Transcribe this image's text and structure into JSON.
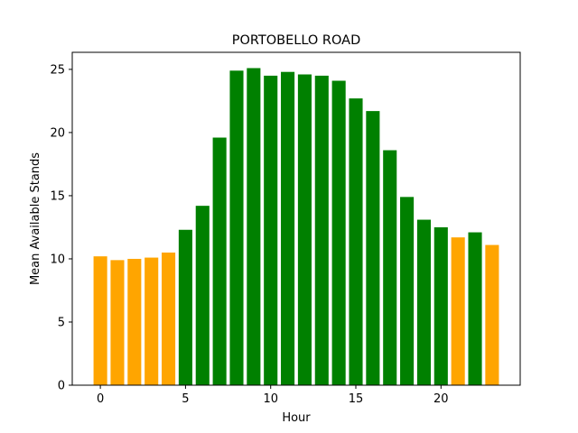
{
  "chart_data": {
    "type": "bar",
    "title": "PORTOBELLO ROAD",
    "xlabel": "Hour",
    "ylabel": "Mean Available Stands",
    "x": [
      0,
      1,
      2,
      3,
      4,
      5,
      6,
      7,
      8,
      9,
      10,
      11,
      12,
      13,
      14,
      15,
      16,
      17,
      18,
      19,
      20,
      21,
      22,
      23
    ],
    "values": [
      10.2,
      9.9,
      10.0,
      10.1,
      10.5,
      12.3,
      14.2,
      19.6,
      24.9,
      25.1,
      24.5,
      24.8,
      24.6,
      24.5,
      24.1,
      22.7,
      21.7,
      18.6,
      14.9,
      13.1,
      12.5,
      11.7,
      12.1,
      11.1
    ],
    "colors": [
      "orange",
      "orange",
      "orange",
      "orange",
      "orange",
      "green",
      "green",
      "green",
      "green",
      "green",
      "green",
      "green",
      "green",
      "green",
      "green",
      "green",
      "green",
      "green",
      "green",
      "green",
      "green",
      "orange",
      "green",
      "orange"
    ],
    "color_map": {
      "orange": "#FFA500",
      "green": "#008000"
    },
    "xlim": [
      -1.65,
      24.65
    ],
    "ylim": [
      0,
      26.35
    ],
    "xticks": [
      0,
      5,
      10,
      15,
      20
    ],
    "yticks": [
      0,
      5,
      10,
      15,
      20,
      25
    ],
    "grid": false,
    "legend": null
  }
}
